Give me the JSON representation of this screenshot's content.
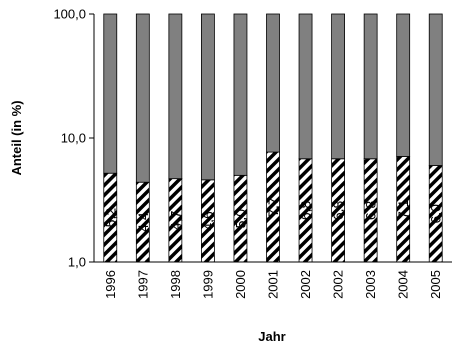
{
  "chart_data": {
    "type": "bar",
    "stacked": true,
    "percent_stacked": true,
    "log_scale_y": true,
    "xlabel": "Jahr",
    "ylabel": "Anteil (in %)",
    "ylim": [
      1,
      100
    ],
    "y_ticks": [
      "1,0",
      "10,0",
      "100,0"
    ],
    "y_tick_values": [
      1,
      10,
      100
    ],
    "grid": false,
    "legend": "none",
    "categories": [
      "1996",
      "1997",
      "1998",
      "1999",
      "2000",
      "2001",
      "2002",
      "2002",
      "2003",
      "2004",
      "2005"
    ],
    "series": [
      {
        "pattern": "diagonal-hatch",
        "color": "#000000",
        "values": [
          5.2,
          4.4,
          4.7,
          4.6,
          5.0,
          7.7,
          6.8,
          6.8,
          6.8,
          7.1,
          6.0
        ],
        "labels": [
          "5,2",
          "4,4",
          "4,7",
          "4,6",
          "5,0",
          "7,7",
          "6,8",
          "6,8",
          "6,8",
          "7,1",
          "6,0"
        ]
      },
      {
        "color": "#808080",
        "values": [
          94.8,
          95.6,
          95.3,
          95.4,
          95.0,
          92.3,
          93.2,
          93.2,
          93.2,
          92.9,
          94.0
        ]
      }
    ]
  }
}
